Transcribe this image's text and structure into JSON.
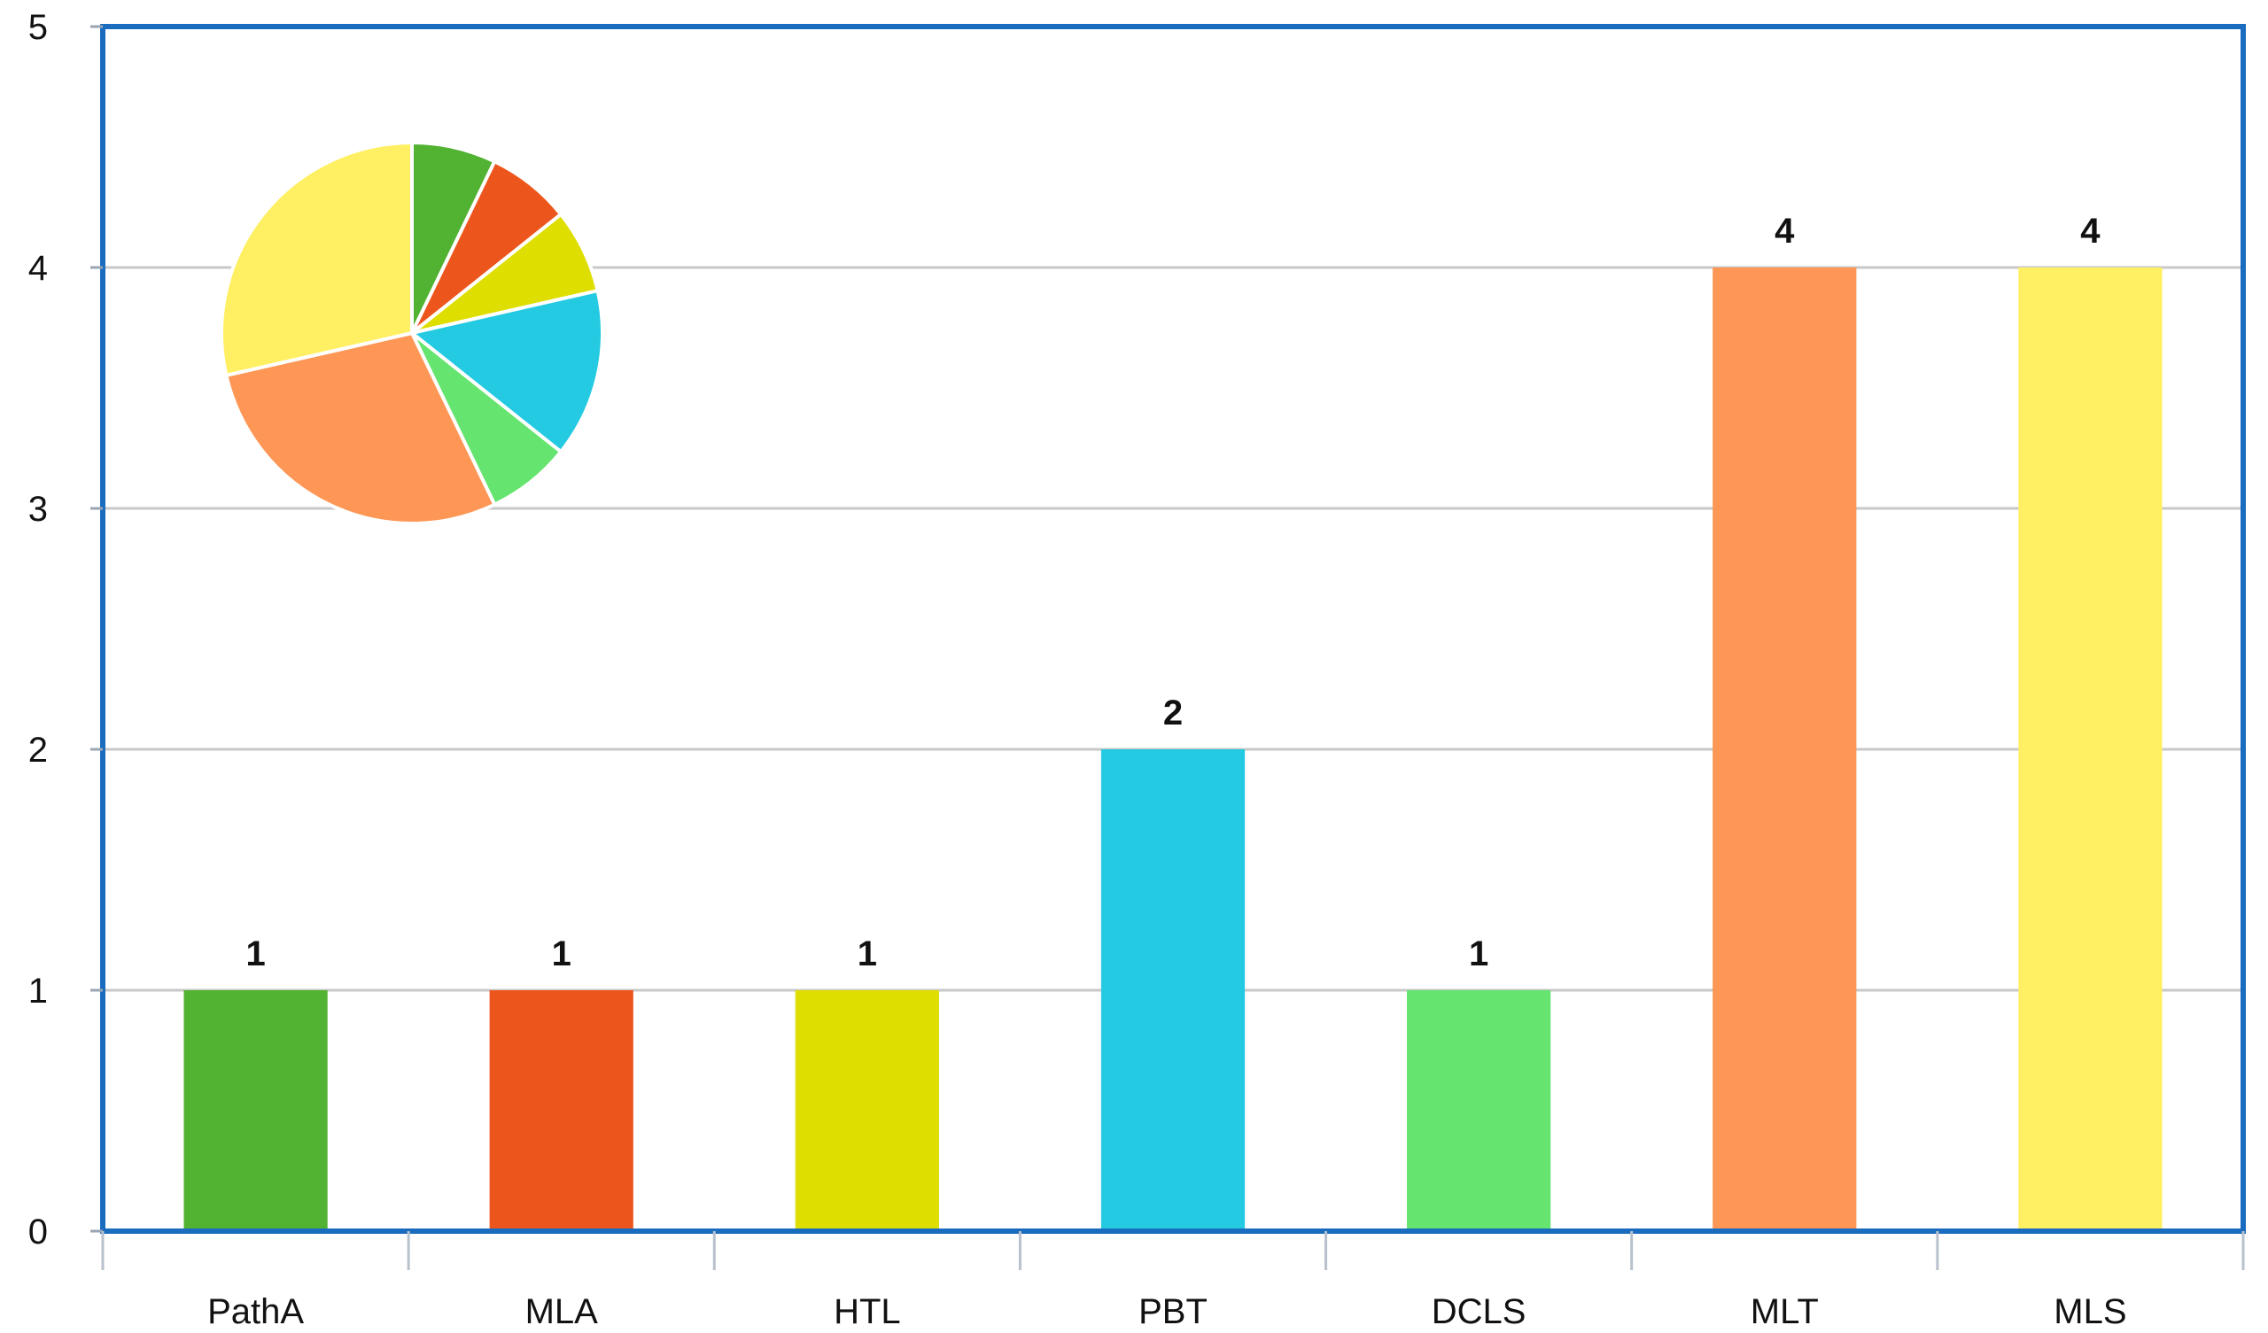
{
  "chart_data": {
    "type": "bar",
    "title": "",
    "xlabel": "",
    "ylabel": "",
    "categories": [
      "PathA",
      "MLA",
      "HTL",
      "PBT",
      "DCLS",
      "MLT",
      "MLS"
    ],
    "values": [
      1,
      1,
      1,
      2,
      1,
      4,
      4
    ],
    "data_labels": [
      "1",
      "1",
      "1",
      "2",
      "1",
      "4",
      "4"
    ],
    "colors": [
      "#52b232",
      "#ec561c",
      "#dede00",
      "#24c9e2",
      "#65e46f",
      "#fe9655",
      "#fff063"
    ],
    "y_ticks": [
      "0",
      "1",
      "2",
      "3",
      "4",
      "5"
    ],
    "ylim": [
      0,
      5
    ],
    "grid": true,
    "legend": "none",
    "frame_color": "#1a6cbf",
    "inset": {
      "type": "pie",
      "values": [
        1,
        1,
        1,
        2,
        1,
        4,
        4
      ],
      "colors": [
        "#52b232",
        "#ec561c",
        "#dede00",
        "#24c9e2",
        "#65e46f",
        "#fe9655",
        "#fff063"
      ],
      "start": "top",
      "direction": "clockwise",
      "position": "top-left"
    }
  }
}
